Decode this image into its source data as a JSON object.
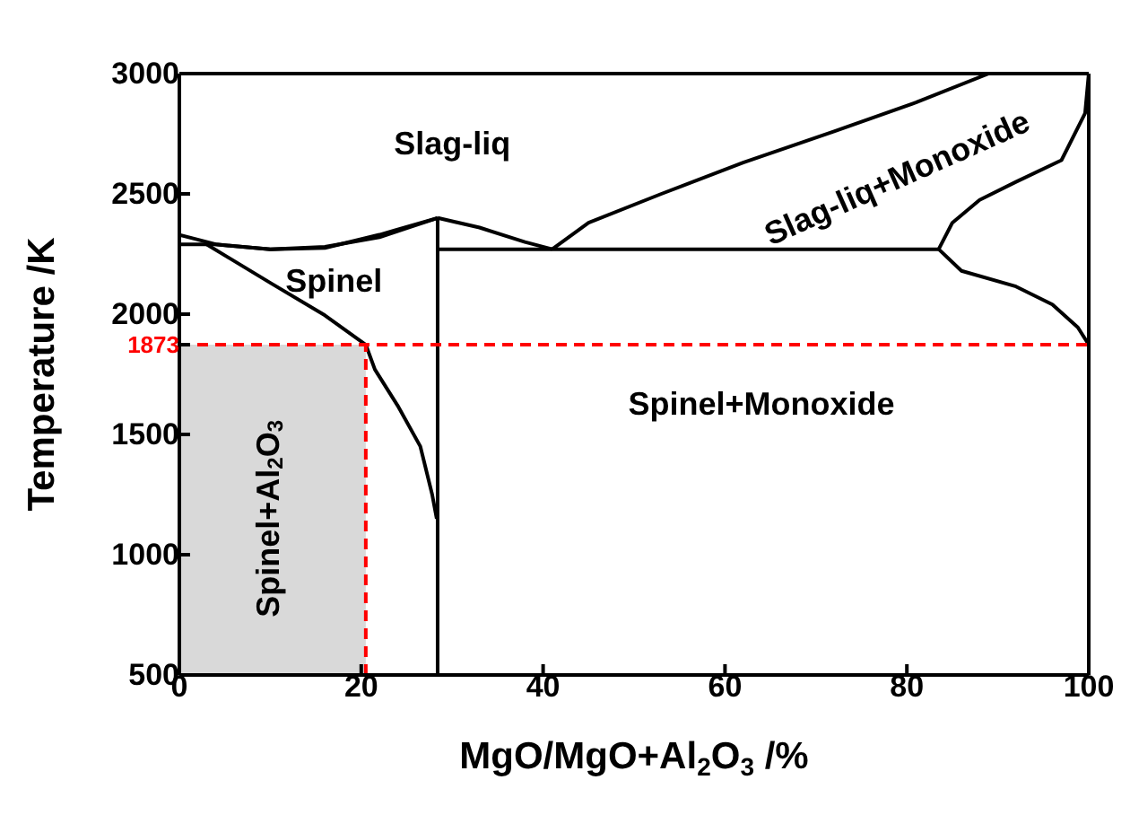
{
  "chart_data": {
    "type": "line",
    "xlabel": "MgO/MgO+Al$_{2}$O$_{3}$ /%",
    "ylabel": "Temperature /K",
    "xlim": [
      0,
      100
    ],
    "xticks": [
      0,
      20,
      40,
      60,
      80,
      100
    ],
    "ylim": [
      500,
      3000
    ],
    "yticks": [
      500,
      1000,
      1500,
      1873,
      2000,
      2500,
      3000
    ],
    "marker": "none",
    "line_style": "solid",
    "series": [
      {
        "type": "area",
        "color": "#d9d9d9",
        "x": [
          0,
          20.5
        ],
        "values": [
          1873,
          1873
        ]
      },
      {
        "color": "#000000",
        "x": [
          0,
          2,
          4,
          10,
          16,
          22,
          28.4
        ],
        "values": [
          2330,
          2310,
          2290,
          2270,
          2280,
          2320,
          2400
        ]
      },
      {
        "color": "#000000",
        "x": [
          0,
          4,
          10,
          16,
          22,
          28.4
        ],
        "values": [
          2290,
          2290,
          2270,
          2275,
          2330,
          2400
        ]
      },
      {
        "color": "#000000",
        "x": [
          3,
          10,
          16,
          20.5,
          21.5,
          24,
          26.5,
          27.8,
          28.3
        ],
        "values": [
          2290,
          2130,
          1995,
          1873,
          1770,
          1620,
          1450,
          1250,
          1150
        ]
      },
      {
        "color": "#000000",
        "x": [
          28.4,
          28.4
        ],
        "values": [
          2400,
          500
        ]
      },
      {
        "color": "#000000",
        "x": [
          28.4,
          33,
          38,
          41
        ],
        "values": [
          2400,
          2360,
          2300,
          2270
        ]
      },
      {
        "color": "#000000",
        "x": [
          41,
          45,
          53,
          62,
          72,
          81,
          89
        ],
        "values": [
          2270,
          2380,
          2500,
          2630,
          2760,
          2880,
          3000
        ]
      },
      {
        "color": "#000000",
        "x": [
          28.4,
          83.5
        ],
        "values": [
          2270,
          2270
        ]
      },
      {
        "color": "#000000",
        "x": [
          100,
          99.6,
          97,
          92,
          88,
          85,
          83.5,
          86,
          92,
          96,
          98.8,
          100,
          100
        ],
        "values": [
          3000,
          2835,
          2640,
          2550,
          2475,
          2380,
          2270,
          2180,
          2115,
          2040,
          1945,
          1873,
          1800
        ]
      },
      {
        "type": "line",
        "color": "#ff0000",
        "line_style": "dashed",
        "x": [
          20.5,
          20.5
        ],
        "values": [
          500,
          1873
        ]
      }
    ],
    "ref_lines": [
      {
        "axis": "y",
        "value": 1873,
        "color": "#ff0000",
        "line_style": "dashed"
      }
    ],
    "annotations": [
      "Slag-liq",
      "Spinel",
      "Spinel+Al$_{2}$O$_{3}$",
      "Spinel+Monoxide",
      "Slag-liq+Monoxide"
    ]
  }
}
